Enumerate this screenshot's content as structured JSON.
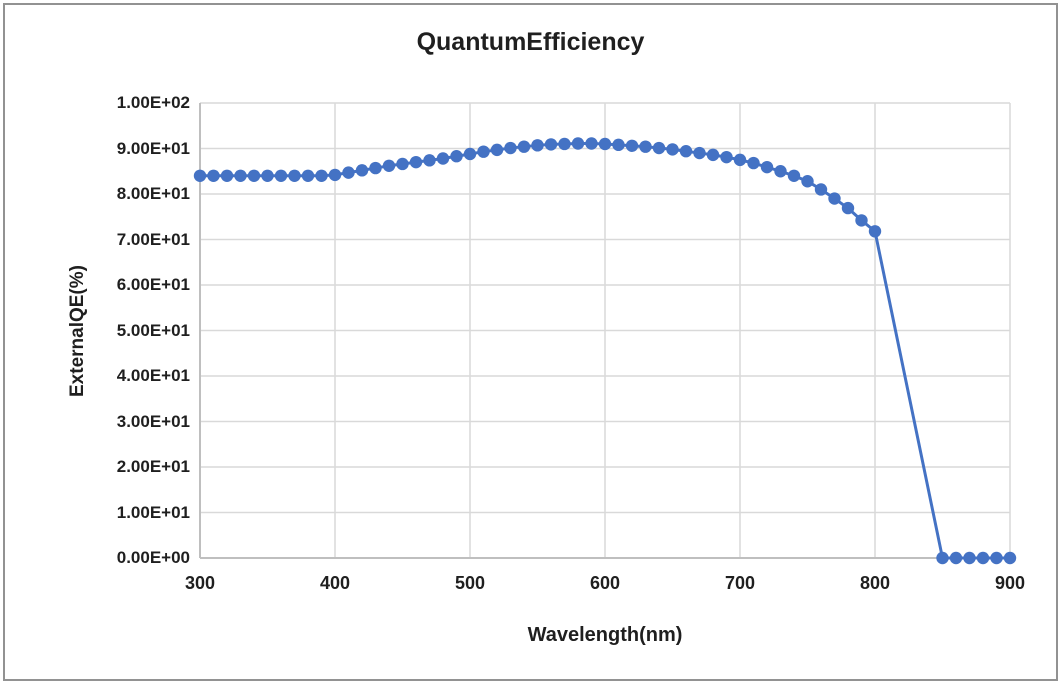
{
  "window": {
    "background": "#ffffff",
    "border_color": "#929292"
  },
  "chart_data": {
    "type": "line",
    "title": "QuantumEfficiency",
    "xlabel": "Wavelength(nm)",
    "ylabel": "ExternalQE(%)",
    "series_name": "ExternalQE(%)",
    "marker": "circle",
    "grid": true,
    "legend": false,
    "xlim": [
      300,
      900
    ],
    "ylim": [
      0,
      100
    ],
    "x_ticks": [
      300,
      400,
      500,
      600,
      700,
      800,
      900
    ],
    "x_tick_labels": [
      "300",
      "400",
      "500",
      "600",
      "700",
      "800",
      "900"
    ],
    "y_tick_values": [
      0,
      10,
      20,
      30,
      40,
      50,
      60,
      70,
      80,
      90,
      100
    ],
    "y_tick_labels": [
      "0.00E+00",
      "1.00E+01",
      "2.00E+01",
      "3.00E+01",
      "4.00E+01",
      "5.00E+01",
      "6.00E+01",
      "7.00E+01",
      "8.00E+01",
      "9.00E+01",
      "1.00E+02"
    ],
    "x": [
      300,
      310,
      320,
      330,
      340,
      350,
      360,
      370,
      380,
      390,
      400,
      410,
      420,
      430,
      440,
      450,
      460,
      470,
      480,
      490,
      500,
      510,
      520,
      530,
      540,
      550,
      560,
      570,
      580,
      590,
      600,
      610,
      620,
      630,
      640,
      650,
      660,
      670,
      680,
      690,
      700,
      710,
      720,
      730,
      740,
      750,
      760,
      770,
      780,
      790,
      800,
      850,
      860,
      870,
      880,
      890,
      900
    ],
    "values": [
      84.0,
      84.0,
      84.0,
      84.0,
      84.0,
      84.0,
      84.0,
      84.0,
      84.0,
      84.0,
      84.2,
      84.7,
      85.2,
      85.7,
      86.2,
      86.6,
      87.0,
      87.4,
      87.8,
      88.3,
      88.8,
      89.3,
      89.7,
      90.1,
      90.4,
      90.7,
      90.9,
      91.0,
      91.1,
      91.1,
      91.0,
      90.8,
      90.6,
      90.4,
      90.1,
      89.8,
      89.4,
      89.0,
      88.6,
      88.1,
      87.5,
      86.8,
      85.9,
      85.0,
      84.0,
      82.8,
      81.0,
      79.0,
      76.9,
      74.2,
      71.8,
      0.0,
      0.0,
      0.0,
      0.0,
      0.0,
      0.0
    ],
    "colors": {
      "series": "#4472C4",
      "gridline": "#D9D9D9",
      "axis_line": "#BFBFBF",
      "text": "#1f1f1f"
    }
  }
}
